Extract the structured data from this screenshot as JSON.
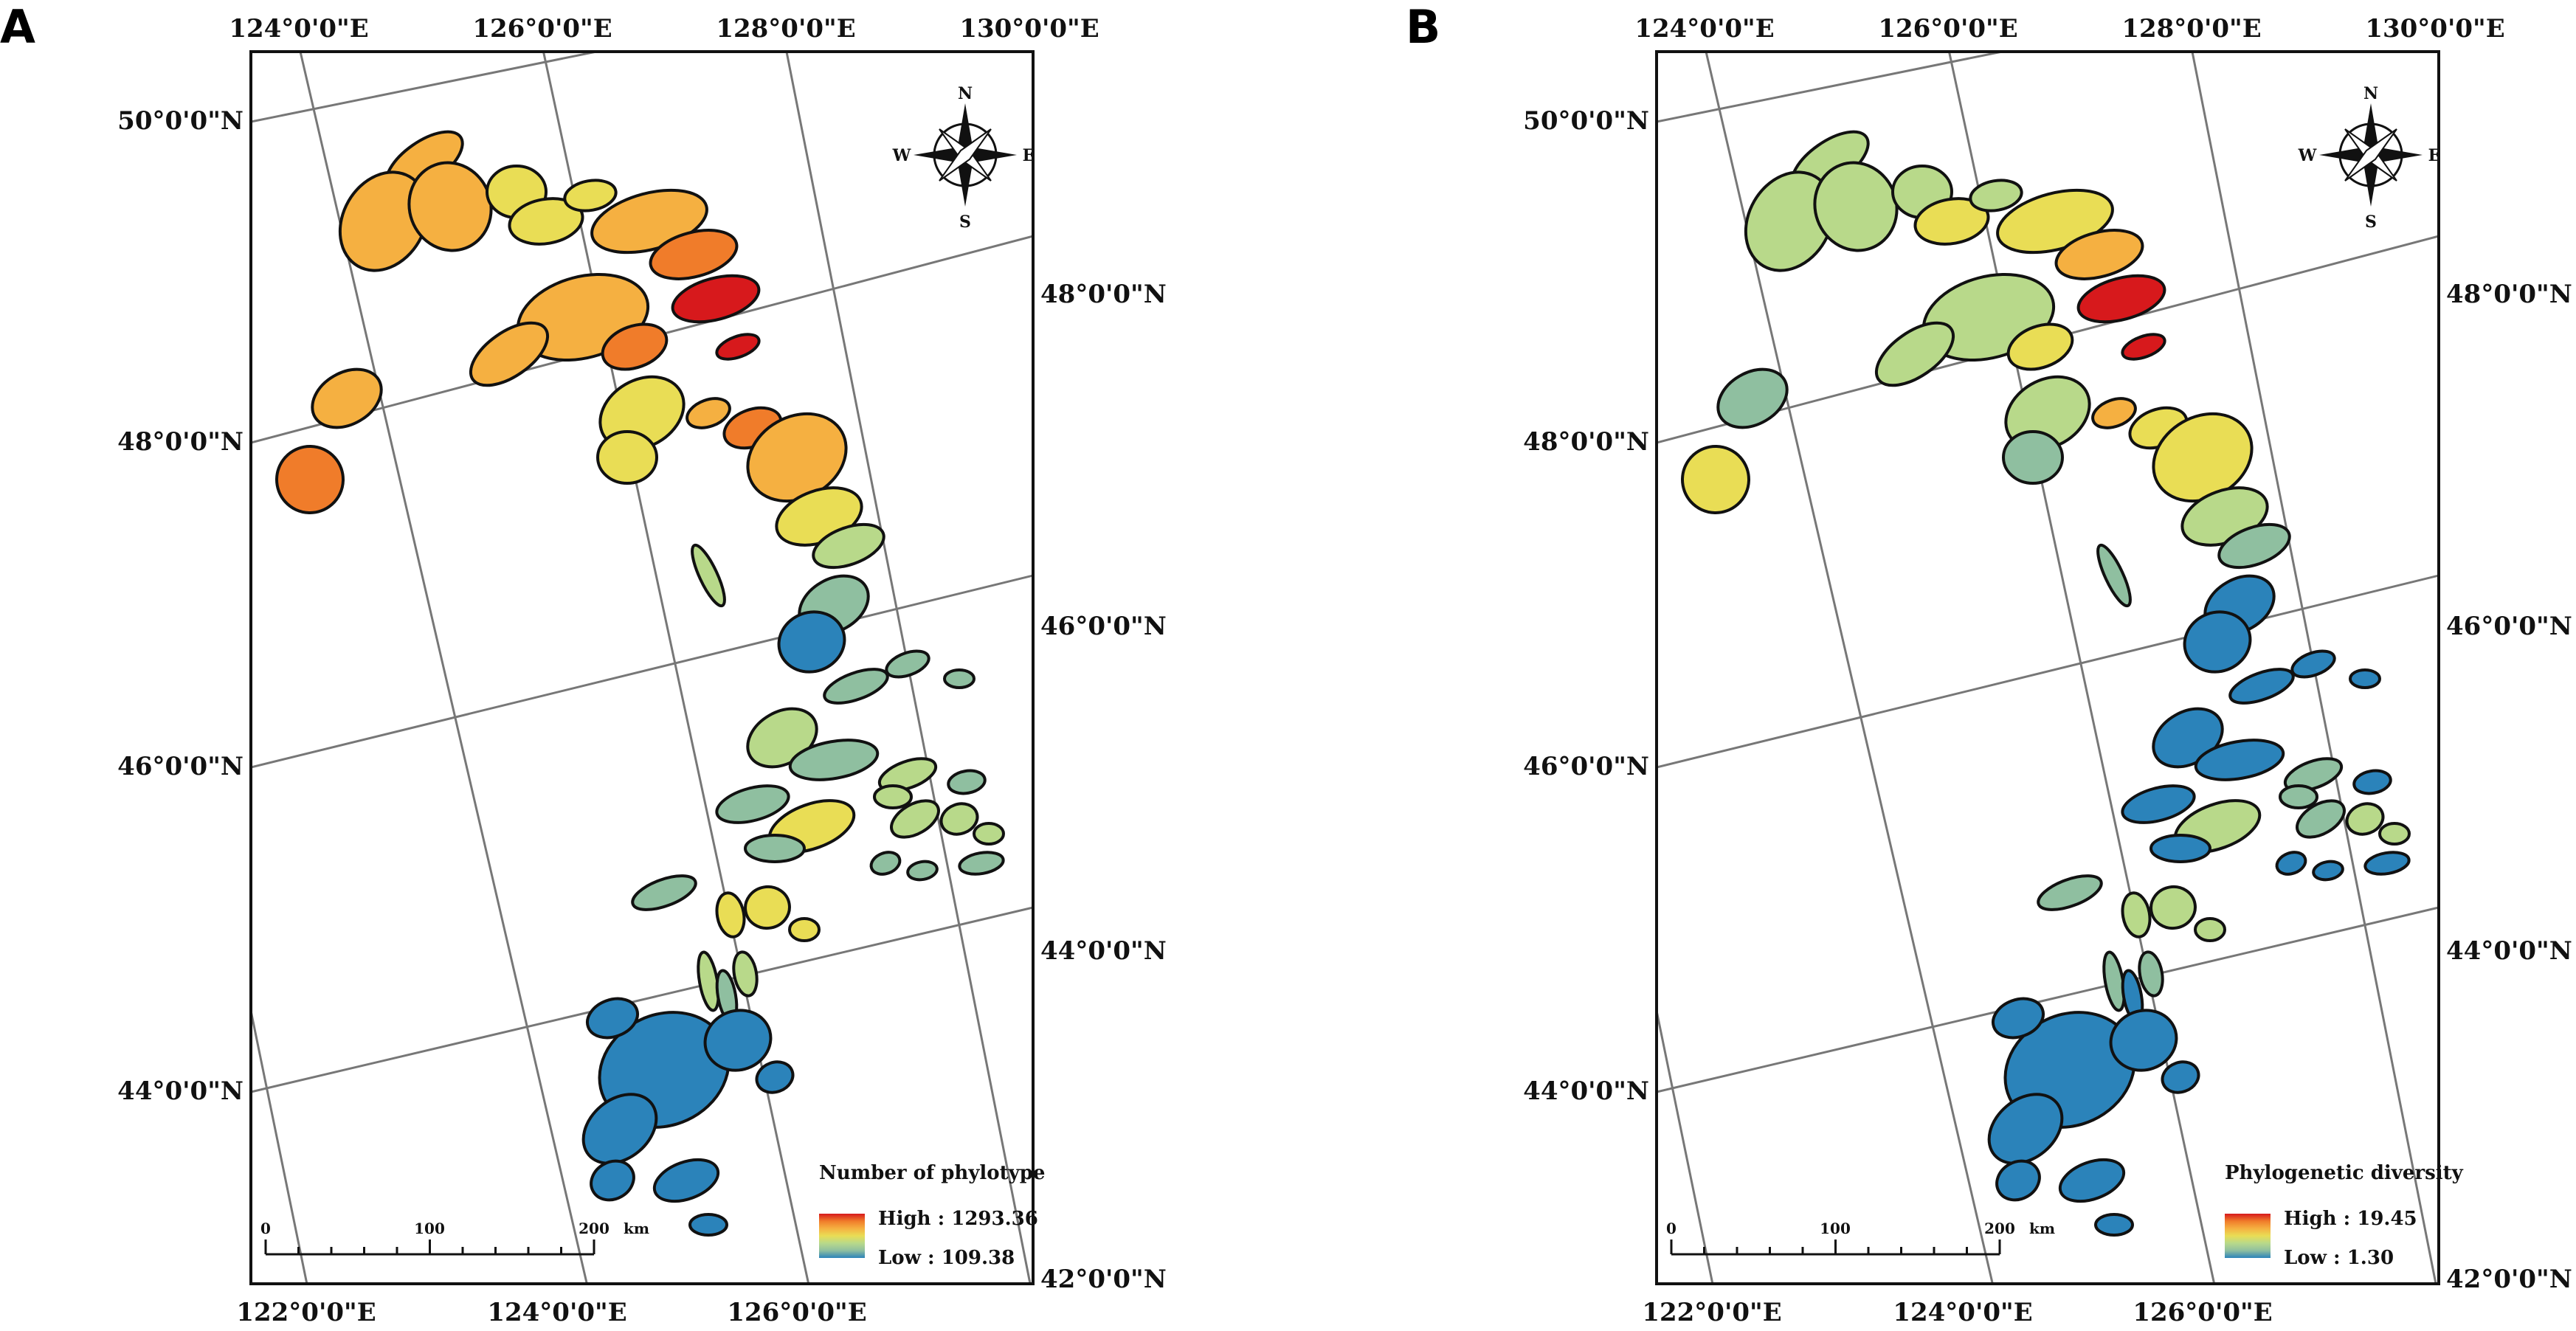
{
  "panels": [
    {
      "id": "A",
      "label": "A",
      "top_labels": [
        "124°0'0\"E",
        "126°0'0\"E",
        "128°0'0\"E",
        "130°0'0\"E"
      ],
      "bottom_labels": [
        "122°0'0\"E",
        "124°0'0\"E",
        "126°0'0\"E"
      ],
      "left_labels": [
        "50°0'0\"N",
        "48°0'0\"N",
        "46°0'0\"N",
        "44°0'0\"N"
      ],
      "right_labels": [
        "48°0'0\"N",
        "46°0'0\"N",
        "44°0'0\"N",
        "42°0'0\"N"
      ],
      "compass": {
        "n": "N",
        "s": "S",
        "e": "E",
        "w": "W"
      },
      "legend": {
        "title": "Number of phylotype",
        "high": "High : 1293.36",
        "low": "Low : 109.38"
      },
      "scalebar": {
        "ticks": [
          "0",
          "100",
          "200"
        ],
        "unit": "km"
      },
      "color_scheme": "A"
    },
    {
      "id": "B",
      "label": "B",
      "top_labels": [
        "124°0'0\"E",
        "126°0'0\"E",
        "128°0'0\"E",
        "130°0'0\"E"
      ],
      "bottom_labels": [
        "122°0'0\"E",
        "124°0'0\"E",
        "126°0'0\"E"
      ],
      "left_labels": [
        "50°0'0\"N",
        "48°0'0\"N",
        "46°0'0\"N",
        "44°0'0\"N"
      ],
      "right_labels": [
        "48°0'0\"N",
        "46°0'0\"N",
        "44°0'0\"N",
        "42°0'0\"N"
      ],
      "compass": {
        "n": "N",
        "s": "S",
        "e": "E",
        "w": "W"
      },
      "legend": {
        "title": "Phylogenetic diversity",
        "high": "High : 19.45",
        "low": "Low : 1.30"
      },
      "scalebar": {
        "ticks": [
          "0",
          "100",
          "200"
        ],
        "unit": "km"
      },
      "color_scheme": "B"
    }
  ],
  "colors": {
    "frame": "#111111",
    "graticule": "#777777",
    "region_outline": "#111111",
    "ramp": [
      "#d7191c",
      "#f07c2a",
      "#f5b041",
      "#e9dd55",
      "#b8d98a",
      "#8fbfa0",
      "#2b83ba"
    ]
  }
}
